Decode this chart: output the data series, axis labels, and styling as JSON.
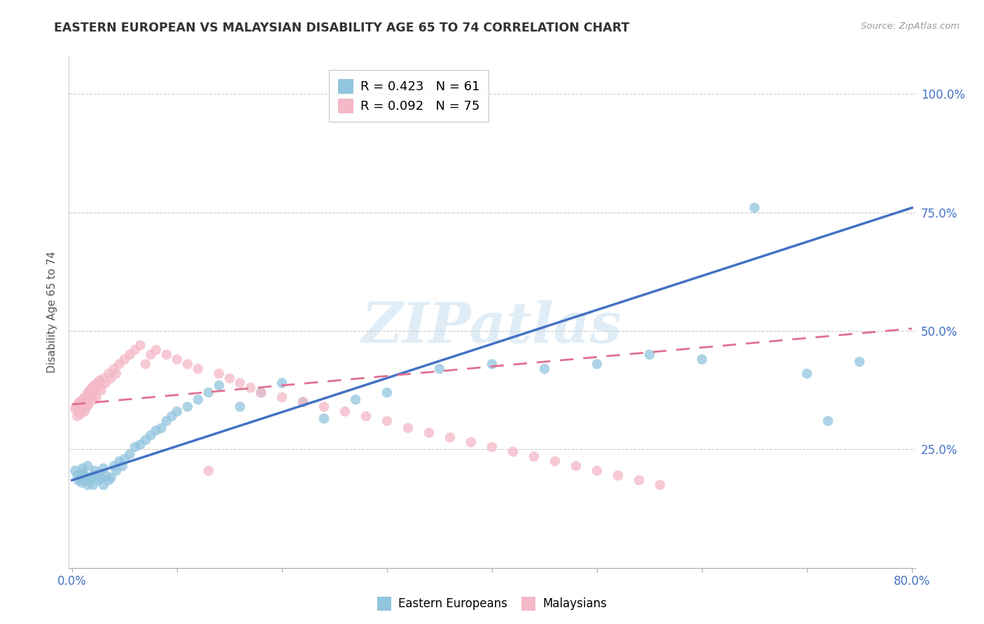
{
  "title": "EASTERN EUROPEAN VS MALAYSIAN DISABILITY AGE 65 TO 74 CORRELATION CHART",
  "source": "Source: ZipAtlas.com",
  "ylabel": "Disability Age 65 to 74",
  "xlim_min": 0.0,
  "xlim_max": 0.8,
  "ylim_min": 0.0,
  "ylim_max": 1.08,
  "x_ticks": [
    0.0,
    0.1,
    0.2,
    0.3,
    0.4,
    0.5,
    0.6,
    0.7,
    0.8
  ],
  "x_tick_labels": [
    "0.0%",
    "",
    "",
    "",
    "",
    "",
    "",
    "",
    "80.0%"
  ],
  "y_ticks": [
    0.25,
    0.5,
    0.75,
    1.0
  ],
  "y_tick_labels": [
    "25.0%",
    "50.0%",
    "75.0%",
    "100.0%"
  ],
  "legend_r1": "R = 0.423",
  "legend_n1": "N = 61",
  "legend_r2": "R = 0.092",
  "legend_n2": "N = 75",
  "blue_color": "#92c5de",
  "pink_color": "#f4b8c8",
  "trend_blue": "#4472c4",
  "trend_pink": "#e07090",
  "watermark_text": "ZIPatlas",
  "watermark_color": "#c8dff0",
  "blue_trend_x0": 0.0,
  "blue_trend_y0": 0.185,
  "blue_trend_x1": 0.8,
  "blue_trend_y1": 0.76,
  "pink_trend_x0": 0.0,
  "pink_trend_y0": 0.345,
  "pink_trend_x1": 0.8,
  "pink_trend_y1": 0.505,
  "blue_x": [
    0.003,
    0.005,
    0.006,
    0.008,
    0.009,
    0.01,
    0.01,
    0.012,
    0.013,
    0.015,
    0.015,
    0.017,
    0.018,
    0.02,
    0.02,
    0.022,
    0.023,
    0.025,
    0.026,
    0.028,
    0.03,
    0.03,
    0.032,
    0.035,
    0.037,
    0.04,
    0.042,
    0.045,
    0.048,
    0.05,
    0.055,
    0.06,
    0.065,
    0.07,
    0.075,
    0.08,
    0.085,
    0.09,
    0.095,
    0.1,
    0.11,
    0.12,
    0.13,
    0.14,
    0.16,
    0.18,
    0.2,
    0.22,
    0.24,
    0.27,
    0.3,
    0.35,
    0.4,
    0.45,
    0.5,
    0.55,
    0.6,
    0.65,
    0.7,
    0.72,
    0.75
  ],
  "blue_y": [
    0.205,
    0.195,
    0.185,
    0.19,
    0.18,
    0.2,
    0.21,
    0.195,
    0.185,
    0.175,
    0.215,
    0.19,
    0.185,
    0.195,
    0.175,
    0.205,
    0.195,
    0.185,
    0.2,
    0.19,
    0.21,
    0.175,
    0.195,
    0.185,
    0.19,
    0.215,
    0.205,
    0.225,
    0.215,
    0.23,
    0.24,
    0.255,
    0.26,
    0.27,
    0.28,
    0.29,
    0.295,
    0.31,
    0.32,
    0.33,
    0.34,
    0.355,
    0.37,
    0.385,
    0.34,
    0.37,
    0.39,
    0.35,
    0.315,
    0.355,
    0.37,
    0.42,
    0.43,
    0.42,
    0.43,
    0.45,
    0.44,
    0.76,
    0.41,
    0.31,
    0.435
  ],
  "pink_x": [
    0.003,
    0.004,
    0.005,
    0.006,
    0.006,
    0.007,
    0.008,
    0.008,
    0.009,
    0.01,
    0.01,
    0.011,
    0.012,
    0.012,
    0.013,
    0.014,
    0.015,
    0.015,
    0.016,
    0.017,
    0.018,
    0.019,
    0.02,
    0.02,
    0.021,
    0.022,
    0.023,
    0.024,
    0.025,
    0.026,
    0.027,
    0.028,
    0.03,
    0.032,
    0.035,
    0.037,
    0.04,
    0.042,
    0.045,
    0.05,
    0.055,
    0.06,
    0.065,
    0.07,
    0.075,
    0.08,
    0.09,
    0.1,
    0.11,
    0.12,
    0.13,
    0.14,
    0.15,
    0.16,
    0.17,
    0.18,
    0.2,
    0.22,
    0.24,
    0.26,
    0.28,
    0.3,
    0.32,
    0.34,
    0.36,
    0.38,
    0.4,
    0.42,
    0.44,
    0.46,
    0.48,
    0.5,
    0.52,
    0.54,
    0.56
  ],
  "pink_y": [
    0.335,
    0.34,
    0.32,
    0.345,
    0.33,
    0.35,
    0.34,
    0.325,
    0.345,
    0.335,
    0.355,
    0.345,
    0.33,
    0.36,
    0.35,
    0.34,
    0.37,
    0.355,
    0.345,
    0.375,
    0.365,
    0.38,
    0.37,
    0.355,
    0.385,
    0.375,
    0.36,
    0.39,
    0.38,
    0.395,
    0.385,
    0.375,
    0.4,
    0.39,
    0.41,
    0.4,
    0.42,
    0.41,
    0.43,
    0.44,
    0.45,
    0.46,
    0.47,
    0.43,
    0.45,
    0.46,
    0.45,
    0.44,
    0.43,
    0.42,
    0.205,
    0.41,
    0.4,
    0.39,
    0.38,
    0.37,
    0.36,
    0.35,
    0.34,
    0.33,
    0.32,
    0.31,
    0.295,
    0.285,
    0.275,
    0.265,
    0.255,
    0.245,
    0.235,
    0.225,
    0.215,
    0.205,
    0.195,
    0.185,
    0.175
  ]
}
